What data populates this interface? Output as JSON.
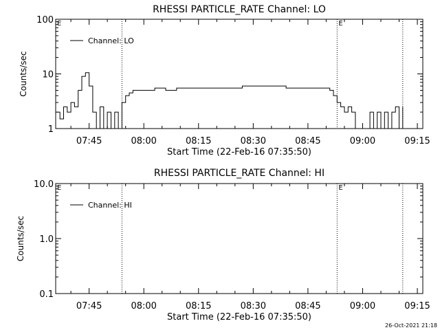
{
  "footer_timestamp": "26-Oct-2021 21:18",
  "chart_data": [
    {
      "type": "line",
      "title": "RHESSI PARTICLE_RATE Channel: LO",
      "xlabel": "Start Time (22-Feb-16 07:35:50)",
      "ylabel": "Counts/sec",
      "yscale": "log",
      "ylim": [
        1,
        100
      ],
      "yticks": [
        "1",
        "10",
        "100"
      ],
      "xlim": [
        "07:35:50",
        "09:16:30"
      ],
      "xticks": [
        "07:45",
        "08:00",
        "08:15",
        "08:30",
        "08:45",
        "09:00",
        "09:15"
      ],
      "grid": false,
      "legend_position": "top-left",
      "vlines": [
        "07:54",
        "08:53",
        "09:11"
      ],
      "markers": [
        {
          "label": "E",
          "x": "07:35:50"
        },
        {
          "label": "E",
          "x": "08:53"
        }
      ],
      "series": [
        {
          "name": "Channel: LO",
          "points": [
            [
              "07:36",
              2
            ],
            [
              "07:37",
              1.5
            ],
            [
              "07:38",
              2.5
            ],
            [
              "07:39",
              2
            ],
            [
              "07:40",
              3
            ],
            [
              "07:41",
              2.5
            ],
            [
              "07:42",
              5
            ],
            [
              "07:43",
              9
            ],
            [
              "07:44",
              10.5
            ],
            [
              "07:45",
              6
            ],
            [
              "07:46",
              2
            ],
            [
              "07:47",
              1
            ],
            [
              "07:48",
              2.5
            ],
            [
              "07:49",
              1
            ],
            [
              "07:50",
              2
            ],
            [
              "07:51",
              1
            ],
            [
              "07:52",
              2
            ],
            [
              "07:53",
              1
            ],
            [
              "07:54",
              3
            ],
            [
              "07:55",
              4
            ],
            [
              "07:56",
              4.5
            ],
            [
              "07:57",
              5
            ],
            [
              "07:58",
              5
            ],
            [
              "08:00",
              5
            ],
            [
              "08:03",
              5.5
            ],
            [
              "08:06",
              5
            ],
            [
              "08:09",
              5.5
            ],
            [
              "08:12",
              5.5
            ],
            [
              "08:15",
              5.5
            ],
            [
              "08:18",
              5.5
            ],
            [
              "08:21",
              5.5
            ],
            [
              "08:24",
              5.5
            ],
            [
              "08:27",
              6
            ],
            [
              "08:30",
              6
            ],
            [
              "08:33",
              6
            ],
            [
              "08:36",
              6
            ],
            [
              "08:39",
              5.5
            ],
            [
              "08:42",
              5.5
            ],
            [
              "08:45",
              5.5
            ],
            [
              "08:48",
              5.5
            ],
            [
              "08:51",
              5
            ],
            [
              "08:52",
              4
            ],
            [
              "08:53",
              3
            ],
            [
              "08:54",
              2.5
            ],
            [
              "08:55",
              2
            ],
            [
              "08:56",
              2.5
            ],
            [
              "08:57",
              2
            ],
            [
              "08:58",
              1
            ],
            [
              "09:01",
              1
            ],
            [
              "09:02",
              2
            ],
            [
              "09:03",
              1
            ],
            [
              "09:04",
              2
            ],
            [
              "09:05",
              1
            ],
            [
              "09:06",
              2
            ],
            [
              "09:07",
              1
            ],
            [
              "09:08",
              2
            ],
            [
              "09:09",
              2.5
            ],
            [
              "09:10",
              1
            ],
            [
              "09:11",
              2.5
            ]
          ]
        }
      ]
    },
    {
      "type": "line",
      "title": "RHESSI PARTICLE_RATE Channel: HI",
      "xlabel": "Start Time (22-Feb-16 07:35:50)",
      "ylabel": "Counts/sec",
      "yscale": "log",
      "ylim": [
        0.1,
        10
      ],
      "yticks": [
        "0.1",
        "1.0",
        "10.0"
      ],
      "xlim": [
        "07:35:50",
        "09:16:30"
      ],
      "xticks": [
        "07:45",
        "08:00",
        "08:15",
        "08:30",
        "08:45",
        "09:00",
        "09:15"
      ],
      "grid": false,
      "legend_position": "top-left",
      "vlines": [
        "07:54",
        "08:53",
        "09:11"
      ],
      "markers": [
        {
          "label": "E",
          "x": "07:35:50"
        },
        {
          "label": "E",
          "x": "08:53"
        }
      ],
      "series": [
        {
          "name": "Channel: HI",
          "points": []
        }
      ]
    }
  ]
}
